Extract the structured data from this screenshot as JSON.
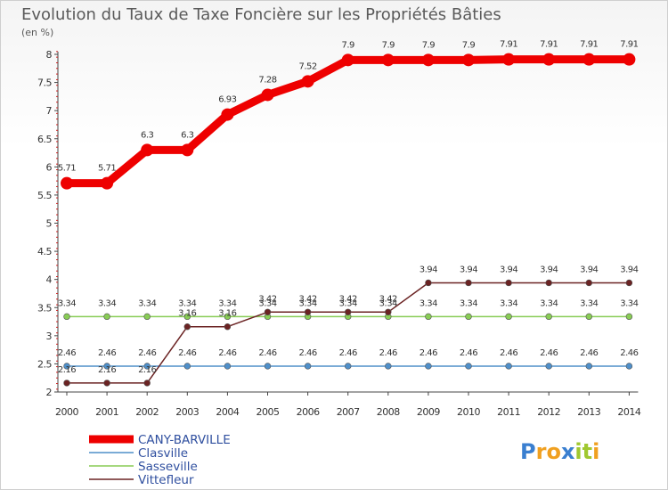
{
  "chart_data": {
    "type": "line",
    "title": "Evolution du Taux de Taxe Foncière sur les Propriétés Bâties",
    "subtitle": "(en %)",
    "x": [
      "2000",
      "2001",
      "2002",
      "2003",
      "2004",
      "2005",
      "2006",
      "2007",
      "2008",
      "2009",
      "2010",
      "2011",
      "2012",
      "2013",
      "2014"
    ],
    "ylim": [
      2,
      8
    ],
    "yticks": [
      "2",
      "2.5",
      "3",
      "3.5",
      "4",
      "4.5",
      "5",
      "5.5",
      "6",
      "6.5",
      "7",
      "7.5",
      "8"
    ],
    "grid": false,
    "legend_position": "bottom-left",
    "series": [
      {
        "name": "CANY-BARVILLE",
        "color": "#ee0000",
        "values": [
          5.71,
          5.71,
          6.3,
          6.3,
          6.93,
          7.28,
          7.52,
          7.9,
          7.9,
          7.9,
          7.9,
          7.91,
          7.91,
          7.91,
          7.91
        ],
        "labels": [
          "5.71",
          "5.71",
          "6.3",
          "6.3",
          "6.93",
          "7.28",
          "7.52",
          "7.9",
          "7.9",
          "7.9",
          "7.9",
          "7.91",
          "7.91",
          "7.91",
          "7.91"
        ]
      },
      {
        "name": "Clasville",
        "color": "#4f8fc9",
        "values": [
          2.46,
          2.46,
          2.46,
          2.46,
          2.46,
          2.46,
          2.46,
          2.46,
          2.46,
          2.46,
          2.46,
          2.46,
          2.46,
          2.46,
          2.46
        ],
        "labels": [
          "2.46",
          "2.46",
          "2.46",
          "2.46",
          "2.46",
          "2.46",
          "2.46",
          "2.46",
          "2.46",
          "2.46",
          "2.46",
          "2.46",
          "2.46",
          "2.46",
          "2.46"
        ]
      },
      {
        "name": "Sasseville",
        "color": "#88cc55",
        "values": [
          3.34,
          3.34,
          3.34,
          3.34,
          3.34,
          3.34,
          3.34,
          3.34,
          3.34,
          3.34,
          3.34,
          3.34,
          3.34,
          3.34,
          3.34
        ],
        "labels": [
          "3.34",
          "3.34",
          "3.34",
          "3.34",
          "3.34",
          "3.34",
          "3.34",
          "3.34",
          "3.34",
          "3.34",
          "3.34",
          "3.34",
          "3.34",
          "3.34",
          "3.34"
        ]
      },
      {
        "name": "Vittefleur",
        "color": "#6b2323",
        "values": [
          2.16,
          2.16,
          2.16,
          3.16,
          3.16,
          3.42,
          3.42,
          3.42,
          3.42,
          3.94,
          3.94,
          3.94,
          3.94,
          3.94,
          3.94
        ],
        "labels": [
          "2.16",
          "2.16",
          "2.16",
          "3.16",
          "3.16",
          "3.42",
          "3.42",
          "3.42",
          "3.42",
          "3.94",
          "3.94",
          "3.94",
          "3.94",
          "3.94",
          "3.94"
        ]
      }
    ]
  },
  "brand": {
    "letters": [
      "P",
      "r",
      "o",
      "x",
      "i",
      "t",
      "i"
    ],
    "colors": [
      "#3a7fd0",
      "#f0a020",
      "#f0a020",
      "#3a7fd0",
      "#a0c830",
      "#a0c830",
      "#f0a020"
    ]
  }
}
